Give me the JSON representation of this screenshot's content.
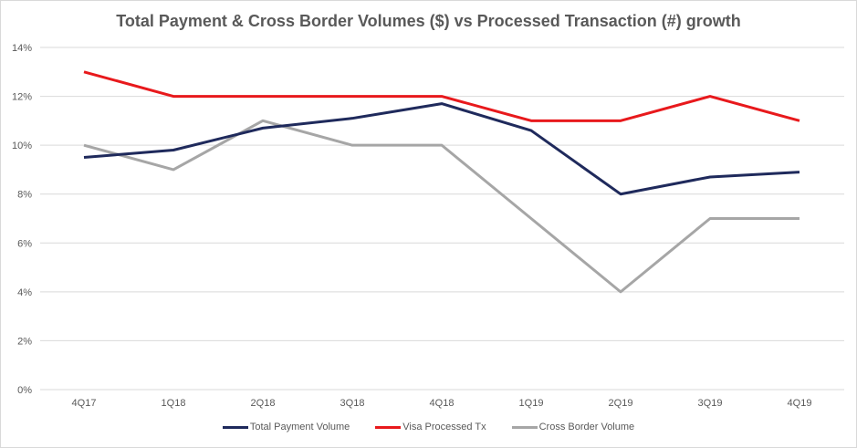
{
  "chart_data": {
    "type": "line",
    "title": "Total Payment & Cross Border Volumes ($) vs Processed Transaction (#) growth",
    "xlabel": "",
    "ylabel": "",
    "categories": [
      "4Q17",
      "1Q18",
      "2Q18",
      "3Q18",
      "4Q18",
      "1Q19",
      "2Q19",
      "3Q19",
      "4Q19"
    ],
    "ylim": [
      0,
      14
    ],
    "yticks": [
      0,
      2,
      4,
      6,
      8,
      10,
      12,
      14
    ],
    "ytick_labels": [
      "0%",
      "2%",
      "4%",
      "6%",
      "8%",
      "10%",
      "12%",
      "14%"
    ],
    "grid": true,
    "legend_position": "bottom",
    "series": [
      {
        "name": "Total Payment Volume",
        "color": "#1f2a5c",
        "values": [
          9.5,
          9.8,
          10.7,
          11.1,
          11.7,
          10.6,
          8.0,
          8.7,
          8.9
        ]
      },
      {
        "name": "Visa Processed Tx",
        "color": "#e8191c",
        "values": [
          13,
          12,
          12,
          12,
          12,
          11,
          11,
          12,
          11
        ]
      },
      {
        "name": "Cross Border Volume",
        "color": "#a6a6a6",
        "values": [
          10,
          9,
          11,
          10,
          10,
          7,
          4,
          7,
          7
        ]
      }
    ]
  }
}
